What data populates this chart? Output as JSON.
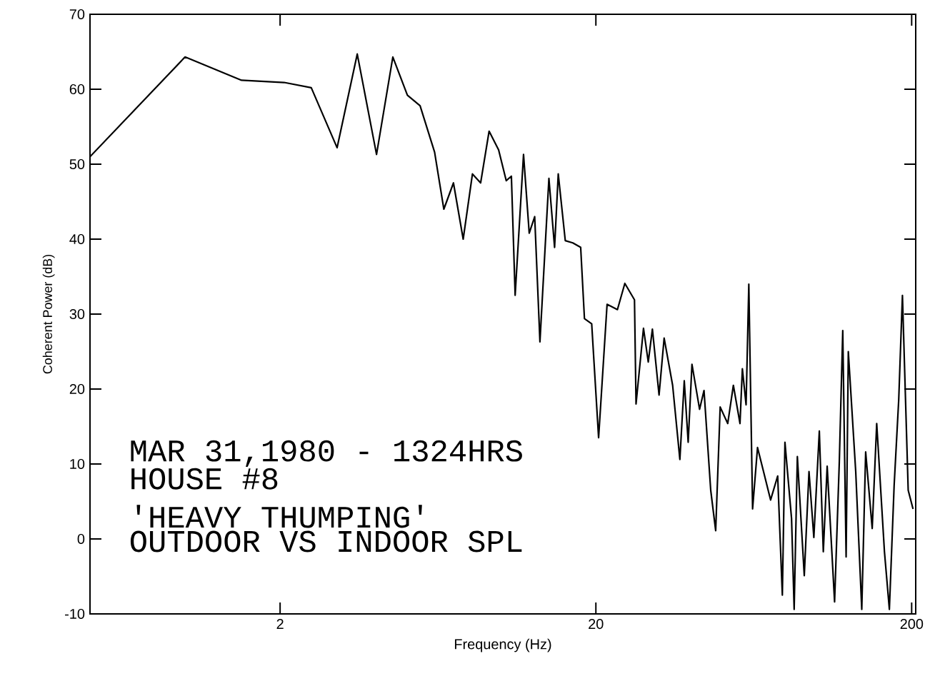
{
  "chart_data": {
    "type": "line",
    "xlabel": "Frequency (Hz)",
    "ylabel": "Coherent Power (dB)",
    "annotations": [
      "MAR 31,1980 - 1324HRS",
      "HOUSE #8",
      "'HEAVY THUMPING'",
      "OUTDOOR VS INDOOR SPL"
    ],
    "log": "x",
    "xlim": [
      0.5,
      206
    ],
    "ylim": [
      -10,
      70
    ],
    "xticks": [
      2,
      20,
      200
    ],
    "yticks": [
      -10,
      0,
      10,
      20,
      30,
      40,
      50,
      60,
      70
    ],
    "marker": "none",
    "line_style": "solid",
    "series": [
      {
        "color": "#000000",
        "x": [
          0.5,
          1.0,
          1.51,
          2.06,
          2.51,
          3.03,
          3.51,
          4.04,
          4.55,
          5.06,
          5.55,
          6.17,
          6.6,
          7.08,
          7.6,
          8.13,
          8.63,
          9.18,
          9.84,
          10.4,
          10.8,
          11.1,
          11.8,
          12.3,
          12.8,
          13.3,
          14.2,
          14.8,
          15.2,
          16.0,
          16.9,
          17.9,
          18.4,
          19.4,
          20.4,
          21.7,
          23.4,
          24.7,
          26.5,
          26.8,
          28.3,
          29.3,
          30.2,
          31.7,
          32.9,
          35,
          36.9,
          38.1,
          39.2,
          40.3,
          42.6,
          44.0,
          46.2,
          47.9,
          49.5,
          52.3,
          54.5,
          57.2,
          58.2,
          59.8,
          61,
          62.7,
          65.0,
          67.9,
          71.5,
          75.3,
          77.9,
          79.4,
          83.3,
          84.9,
          86.9,
          91.4,
          94.6,
          98,
          102,
          105,
          108,
          114,
          118,
          121,
          124,
          126,
          133,
          139,
          143,
          150,
          155,
          164,
          170,
          176,
          182,
          187,
          195,
          202
        ],
        "values": [
          51,
          64.3,
          61.2,
          60.9,
          60.2,
          52.2,
          64.7,
          51.3,
          64.3,
          59.2,
          57.8,
          51.6,
          44,
          47.5,
          40,
          48.7,
          47.5,
          54.4,
          51.9,
          47.8,
          48.4,
          32.5,
          51.3,
          40.8,
          43,
          26.3,
          48.1,
          38.9,
          48.7,
          39.8,
          39.5,
          38.9,
          29.4,
          28.7,
          13.5,
          31.3,
          30.6,
          34.1,
          31.9,
          18,
          28.1,
          23.6,
          28,
          19.2,
          26.8,
          20.5,
          10.6,
          21.1,
          12.9,
          23.3,
          17.3,
          19.8,
          6.5,
          1.1,
          17.6,
          15.4,
          20.5,
          15.4,
          22.7,
          17.9,
          34,
          4.0,
          12.2,
          9.0,
          5.2,
          8.4,
          -7.5,
          12.9,
          2.7,
          -9.4,
          11,
          -4.9,
          9.0,
          0.2,
          14.4,
          -1.7,
          9.7,
          -8.4,
          10.3,
          27.8,
          -2.4,
          25,
          9.0,
          -9.4,
          11.6,
          1.4,
          15.4,
          -1.7,
          -9.4,
          7.1,
          18.6,
          32.5,
          6.5,
          4.0
        ]
      }
    ]
  }
}
